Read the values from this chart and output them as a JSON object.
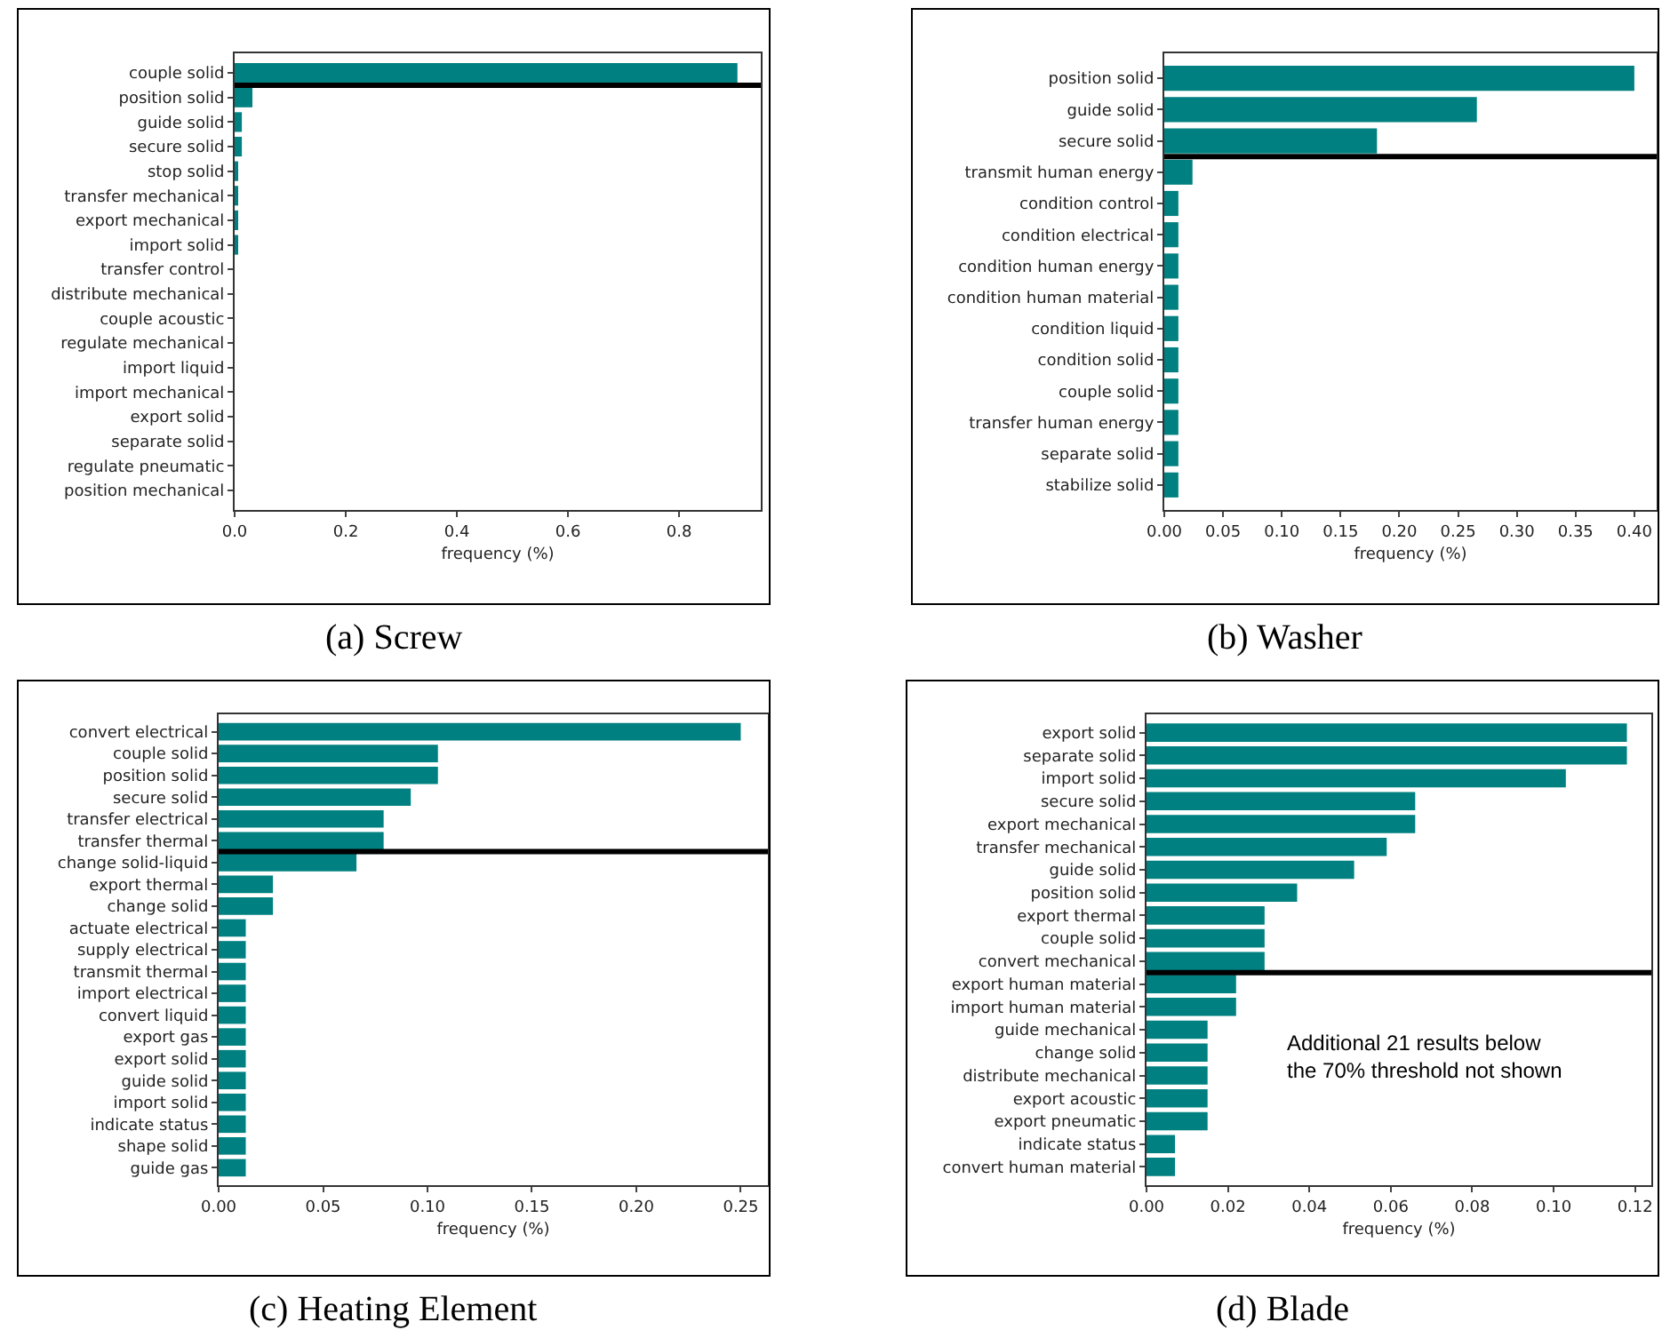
{
  "chart_data": [
    {
      "type": "bar",
      "orientation": "horizontal",
      "title": "(a) Screw",
      "xlabel": "frequency (%)",
      "color": "#008080",
      "categories": [
        "couple solid",
        "position solid",
        "guide solid",
        "secure solid",
        "stop solid",
        "transfer mechanical",
        "export mechanical",
        "import solid",
        "transfer control",
        "distribute mechanical",
        "couple acoustic",
        "regulate mechanical",
        "import liquid",
        "import mechanical",
        "export solid",
        "separate solid",
        "regulate pneumatic",
        "position mechanical"
      ],
      "values": [
        0.905,
        0.032,
        0.013,
        0.013,
        0.006,
        0.006,
        0.004,
        0.004,
        0,
        0,
        0,
        0,
        0,
        0,
        0,
        0,
        0,
        0
      ],
      "xlim": [
        0,
        0.947
      ],
      "xticks": [
        {
          "value": 0,
          "label": "0.0"
        },
        0.2,
        0.4,
        0.6,
        0.8
      ],
      "ref_lines": [
        {
          "axis": "y",
          "value": "couple solid",
          "color": "#000000"
        }
      ]
    },
    {
      "type": "bar",
      "orientation": "horizontal",
      "title": "(b) Washer",
      "xlabel": "frequency (%)",
      "color": "#008080",
      "categories": [
        "position solid",
        "guide solid",
        "secure solid",
        "transmit human energy",
        "condition control",
        "condition electrical",
        "condition human energy",
        "condition human material",
        "condition liquid",
        "condition solid",
        "couple solid",
        "transfer human energy",
        "separate solid",
        "stabilize solid"
      ],
      "values": [
        0.4,
        0.266,
        0.181,
        0.024,
        0.012,
        0.012,
        0.012,
        0.012,
        0.012,
        0.012,
        0.012,
        0.012,
        0.012,
        0.012
      ],
      "xlim": [
        0,
        0.419
      ],
      "xticks": [
        {
          "value": 0,
          "label": "0.00"
        },
        0.05,
        {
          "value": 0.1,
          "label": "0.10"
        },
        0.15,
        {
          "value": 0.2,
          "label": "0.20"
        },
        0.25,
        {
          "value": 0.3,
          "label": "0.30"
        },
        0.35,
        {
          "value": 0.4,
          "label": "0.40"
        }
      ],
      "ref_lines": [
        {
          "axis": "y",
          "value": "secure solid",
          "color": "#000000"
        }
      ]
    },
    {
      "type": "bar",
      "orientation": "horizontal",
      "title": "(c) Heating Element",
      "xlabel": "frequency (%)",
      "color": "#008080",
      "categories": [
        "convert electrical",
        "couple solid",
        "position solid",
        "secure solid",
        "transfer electrical",
        "transfer thermal",
        "change solid-liquid",
        "export thermal",
        "change solid",
        "actuate electrical",
        "supply electrical",
        "transmit thermal",
        "import electrical",
        "convert liquid",
        "export gas",
        "export solid",
        "guide solid",
        "import solid",
        "indicate status",
        "shape solid",
        "guide gas"
      ],
      "values": [
        0.25,
        0.105,
        0.105,
        0.092,
        0.079,
        0.079,
        0.066,
        0.026,
        0.026,
        0.013,
        0.013,
        0.013,
        0.013,
        0.013,
        0.013,
        0.013,
        0.013,
        0.013,
        0.013,
        0.013,
        0.013
      ],
      "xlim": [
        0,
        0.263
      ],
      "xticks": [
        {
          "value": 0,
          "label": "0.00"
        },
        0.05,
        {
          "value": 0.1,
          "label": "0.10"
        },
        0.15,
        {
          "value": 0.2,
          "label": "0.20"
        },
        0.25
      ],
      "ref_lines": [
        {
          "axis": "y",
          "value": "transfer thermal",
          "color": "#000000"
        }
      ]
    },
    {
      "type": "bar",
      "orientation": "horizontal",
      "title": "(d) Blade",
      "xlabel": "frequency (%)",
      "color": "#008080",
      "categories": [
        "export solid",
        "separate solid",
        "import solid",
        "secure solid",
        "export mechanical",
        "transfer mechanical",
        "guide solid",
        "position solid",
        "export thermal",
        "couple solid",
        "convert mechanical",
        "export human material",
        "import human material",
        "guide mechanical",
        "change solid",
        "distribute mechanical",
        "export acoustic",
        "export pneumatic",
        "indicate status",
        "convert human material"
      ],
      "values": [
        0.118,
        0.118,
        0.103,
        0.066,
        0.066,
        0.059,
        0.051,
        0.037,
        0.029,
        0.029,
        0.029,
        0.022,
        0.022,
        0.015,
        0.015,
        0.015,
        0.015,
        0.015,
        0.007,
        0.007
      ],
      "xlim": [
        0,
        0.124
      ],
      "xticks": [
        {
          "value": 0,
          "label": "0.00"
        },
        0.02,
        0.04,
        0.06,
        0.08,
        {
          "value": 0.1,
          "label": "0.10"
        },
        0.12
      ],
      "ref_lines": [
        {
          "axis": "y",
          "value": "convert mechanical",
          "color": "#000000"
        }
      ],
      "annotations": [
        "Additional 21 results below\nthe 70% threshold not shown"
      ]
    }
  ]
}
